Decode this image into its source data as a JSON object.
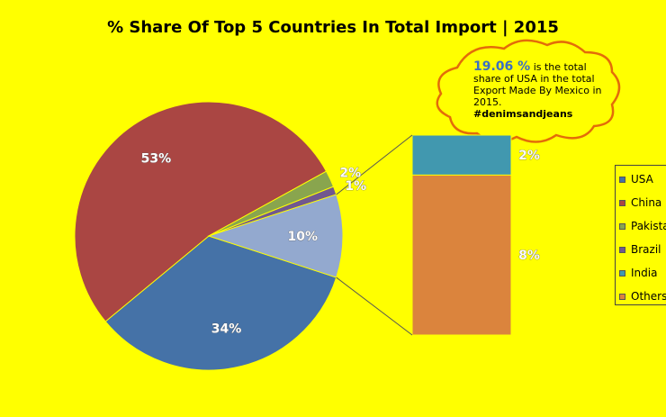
{
  "colors": {
    "background": "#ffff00",
    "cloud_border": "#e36c09"
  },
  "callout": {
    "highlight": "19.06 %",
    "text": "is the total share of USA in the total Export Made By Mexico in 2015.",
    "hashtag": "#denimsandjeans"
  },
  "chart_data": {
    "type": "pie",
    "title": "% Share Of Top 5 Countries In Total Import | 2015",
    "slices": [
      {
        "label": "USA",
        "value": 34,
        "data_label": "34%",
        "color": "#4572a7"
      },
      {
        "label": "China",
        "value": 53,
        "data_label": "53%",
        "color": "#aa4643"
      },
      {
        "label": "Pakistan",
        "value": 2,
        "data_label": "2%",
        "color": "#89a54e"
      },
      {
        "label": "Brazil",
        "value": 1,
        "data_label": "1%",
        "color": "#71588f"
      },
      {
        "label": "Others",
        "value": 10,
        "data_label": "10%",
        "color": "#93a9cf"
      }
    ],
    "others_breakdown": [
      {
        "label": "India",
        "value": 2,
        "data_label": "2%",
        "color": "#4198af"
      },
      {
        "label": "Others",
        "value": 8,
        "data_label": "8%",
        "color": "#db843d"
      }
    ],
    "legend": {
      "position": "right",
      "entries": [
        {
          "label": "USA",
          "color": "#4572a7"
        },
        {
          "label": "China",
          "color": "#aa4643"
        },
        {
          "label": "Pakistan",
          "color": "#89a54e"
        },
        {
          "label": "Brazil",
          "color": "#71588f"
        },
        {
          "label": "India",
          "color": "#4198af"
        },
        {
          "label": "Others",
          "color": "#db843d"
        }
      ]
    }
  }
}
